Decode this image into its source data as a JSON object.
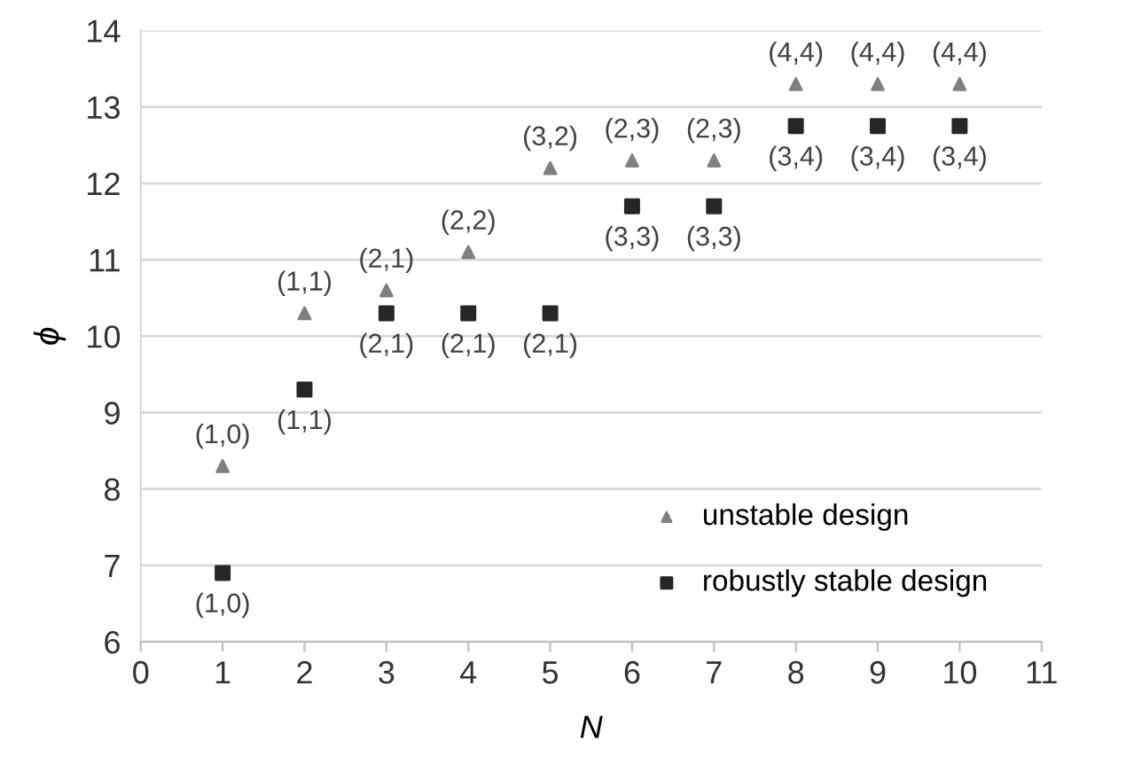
{
  "chart_data": {
    "type": "scatter",
    "xlabel": "N",
    "ylabel": "ϕ",
    "x": [
      1,
      2,
      3,
      4,
      5,
      6,
      7,
      8,
      9,
      10
    ],
    "series": [
      {
        "name": "unstable design",
        "color": "#808080",
        "marker": "triangle",
        "values": [
          8.3,
          10.3,
          10.6,
          11.1,
          12.2,
          12.3,
          12.3,
          13.3,
          13.3,
          13.3
        ]
      },
      {
        "name": "robustly stable design",
        "color": "#262626",
        "marker": "square",
        "values": [
          6.9,
          9.3,
          10.3,
          10.3,
          10.3,
          11.7,
          11.7,
          12.75,
          12.75,
          12.75
        ]
      }
    ],
    "annotations": [
      {
        "text": "(1,0)",
        "x": 1,
        "y": 8.3
      },
      {
        "text": "(1,1)",
        "x": 2,
        "y": 10.3
      },
      {
        "text": "(2,1)",
        "x": 3,
        "y": 10.6
      },
      {
        "text": "(2,2)",
        "x": 4,
        "y": 11.1
      },
      {
        "text": "(3,2)",
        "x": 5,
        "y": 12.2
      },
      {
        "text": "(2,3)",
        "x": 6,
        "y": 12.3
      },
      {
        "text": "(2,3)",
        "x": 7,
        "y": 12.3
      },
      {
        "text": "(4,4)",
        "x": 8,
        "y": 13.3
      },
      {
        "text": "(4,4)",
        "x": 9,
        "y": 13.3
      },
      {
        "text": "(4,4)",
        "x": 10,
        "y": 13.3
      },
      {
        "text": "(1,0)",
        "x": 1,
        "y": 6.9
      },
      {
        "text": "(1,1)",
        "x": 2,
        "y": 9.3
      },
      {
        "text": "(2,1)",
        "x": 3,
        "y": 10.3
      },
      {
        "text": "(2,1)",
        "x": 4,
        "y": 10.3
      },
      {
        "text": "(2,1)",
        "x": 5,
        "y": 10.3
      },
      {
        "text": "(3,3)",
        "x": 6,
        "y": 11.7
      },
      {
        "text": "(3,3)",
        "x": 7,
        "y": 11.7
      },
      {
        "text": "(3,4)",
        "x": 8,
        "y": 12.75
      },
      {
        "text": "(3,4)",
        "x": 9,
        "y": 12.75
      },
      {
        "text": "(3,4)",
        "x": 10,
        "y": 12.75
      }
    ],
    "xlim": [
      0,
      11
    ],
    "xticks": [
      0,
      1,
      2,
      3,
      4,
      5,
      6,
      7,
      8,
      9,
      10,
      11
    ],
    "ylim": [
      6,
      14
    ],
    "yticks": [
      6,
      7,
      8,
      9,
      10,
      11,
      12,
      13,
      14
    ],
    "grid": "y",
    "legend": "bottom right"
  }
}
